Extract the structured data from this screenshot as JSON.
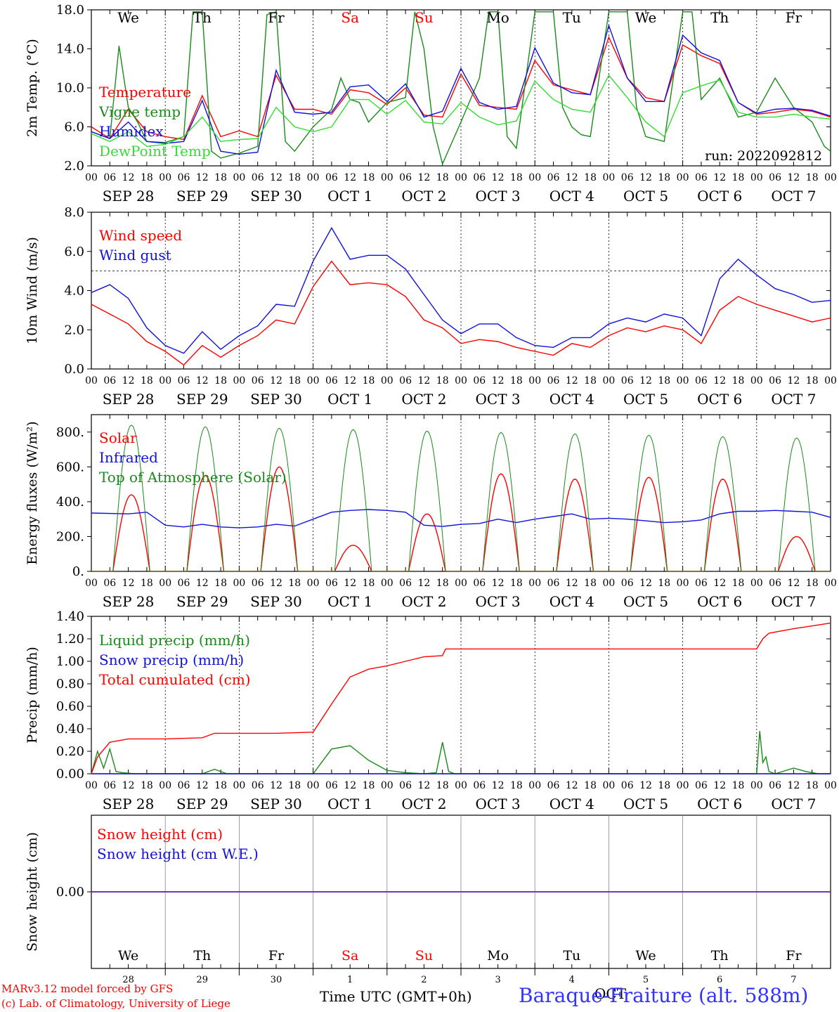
{
  "colors": {
    "temperature": "#ff0000",
    "vigne": "#1a8a1a",
    "humidex": "#1111dd",
    "dewpoint": "#33dd33",
    "wind": "#ff0000",
    "gust": "#1111dd",
    "solar": "#ff0000",
    "infrared": "#1111dd",
    "toa": "#1a8a1a",
    "liquid": "#1a8a1a",
    "snow": "#1111dd",
    "cumul": "#ff0000",
    "snowh": "#ff0000",
    "snowwe": "#1111dd",
    "snowline": "#7733aa",
    "weekend": "#ff0000",
    "weekday": "#000000"
  },
  "days": [
    "We",
    "Th",
    "Fr",
    "Sa",
    "Su",
    "Mo",
    "Tu",
    "We",
    "Th",
    "Fr"
  ],
  "weekend_days": [
    3,
    4
  ],
  "dates": [
    "SEP 28",
    "SEP 29",
    "SEP 30",
    "OCT  1",
    "OCT  2",
    "OCT  3",
    "OCT  4",
    "OCT  5",
    "OCT  6",
    "OCT  7"
  ],
  "day_numbers": [
    "28",
    "29",
    "30",
    "1",
    "2",
    "3",
    "4",
    "5",
    "6",
    "7"
  ],
  "hour_ticks": [
    "00",
    "06",
    "12",
    "18"
  ],
  "run_label": "run: 2022092812",
  "footer": {
    "credit_line1": "MARv3.12 model forced by GFS",
    "credit_line2": "(c) Lab. of Climatology, University of Liege",
    "axis_title": "Time UTC (GMT+0h)",
    "station": "Baraque-Fraiture (alt. 588m)",
    "month_stamp": "OCT"
  },
  "chart_data": [
    {
      "type": "line",
      "ylabel": "2m Temp. (°C)",
      "ylim": [
        2.0,
        18.0
      ],
      "yticks": [
        "2.0",
        "6.0",
        "10.0",
        "14.0",
        "18.0"
      ],
      "x_unit": "hours since SEP 28 00 UTC",
      "series": [
        {
          "name": "Temperature",
          "color_key": "temperature",
          "x": [
            0,
            6,
            12,
            18,
            24,
            30,
            36,
            42,
            48,
            54,
            60,
            66,
            72,
            78,
            84,
            90,
            96,
            102,
            108,
            114,
            120,
            126,
            132,
            138,
            144,
            150,
            156,
            162,
            168,
            174,
            180,
            186,
            192,
            198,
            204,
            210,
            216,
            222,
            228,
            234,
            240
          ],
          "y": [
            6.0,
            4.8,
            7.8,
            5.5,
            5.0,
            4.7,
            9.2,
            5.0,
            5.6,
            5.0,
            11.3,
            7.8,
            7.8,
            7.3,
            9.8,
            9.5,
            8.3,
            10.0,
            7.2,
            7.0,
            11.4,
            8.2,
            8.0,
            7.8,
            12.8,
            10.3,
            9.8,
            9.3,
            15.2,
            11.0,
            9.0,
            8.6,
            14.4,
            13.3,
            12.5,
            8.5,
            7.3,
            7.5,
            7.8,
            7.6,
            7.0
          ]
        },
        {
          "name": "Vigne temp",
          "color_key": "vigne",
          "x": [
            0,
            6,
            9,
            12,
            15,
            18,
            24,
            30,
            33,
            36,
            39,
            42,
            48,
            54,
            57,
            60,
            63,
            66,
            72,
            78,
            81,
            84,
            87,
            90,
            96,
            102,
            105,
            108,
            111,
            114,
            120,
            126,
            129,
            132,
            135,
            138,
            144,
            150,
            153,
            156,
            159,
            162,
            168,
            174,
            177,
            180,
            186,
            192,
            195,
            198,
            204,
            210,
            216,
            222,
            228,
            234,
            238,
            240
          ],
          "y": [
            5.5,
            4.8,
            14.3,
            8.0,
            6.5,
            4.5,
            4.4,
            5.0,
            17.8,
            17.8,
            3.5,
            2.8,
            3.3,
            4.0,
            17.5,
            17.8,
            4.5,
            3.5,
            6.0,
            7.8,
            11.0,
            8.8,
            8.5,
            6.5,
            8.5,
            9.0,
            17.8,
            14.0,
            6.0,
            2.2,
            6.5,
            11.0,
            17.8,
            17.8,
            5.0,
            3.8,
            17.8,
            17.8,
            8.0,
            6.0,
            5.2,
            5.0,
            17.8,
            17.8,
            8.0,
            5.0,
            4.5,
            17.8,
            17.8,
            8.8,
            11.0,
            7.0,
            7.5,
            11.0,
            8.0,
            6.5,
            4.0,
            3.5
          ]
        },
        {
          "name": "Humidex",
          "color_key": "humidex",
          "x": [
            0,
            6,
            12,
            18,
            24,
            30,
            36,
            42,
            48,
            54,
            60,
            66,
            72,
            78,
            84,
            90,
            96,
            102,
            108,
            114,
            120,
            126,
            132,
            138,
            144,
            150,
            156,
            162,
            168,
            174,
            180,
            186,
            192,
            198,
            204,
            210,
            216,
            222,
            228,
            234,
            240
          ],
          "y": [
            5.5,
            4.8,
            6.5,
            4.5,
            4.3,
            4.5,
            8.7,
            3.5,
            3.2,
            3.4,
            11.8,
            7.5,
            7.3,
            7.5,
            10.1,
            10.3,
            8.6,
            10.4,
            7.0,
            7.6,
            12.0,
            8.5,
            7.8,
            8.1,
            14.1,
            10.5,
            9.5,
            9.3,
            16.4,
            11.0,
            8.6,
            8.6,
            15.4,
            13.6,
            12.8,
            8.5,
            7.4,
            7.8,
            7.9,
            7.7,
            7.1
          ]
        },
        {
          "name": "DewPoint Temp",
          "color_key": "dewpoint",
          "x": [
            0,
            6,
            12,
            18,
            24,
            30,
            36,
            42,
            48,
            54,
            60,
            66,
            72,
            78,
            84,
            90,
            96,
            102,
            108,
            114,
            120,
            126,
            132,
            138,
            144,
            150,
            156,
            162,
            168,
            174,
            180,
            186,
            192,
            198,
            204,
            210,
            216,
            222,
            228,
            234,
            240
          ],
          "y": [
            5.3,
            4.5,
            5.5,
            4.0,
            4.2,
            5.0,
            7.0,
            4.5,
            4.7,
            4.8,
            8.0,
            6.0,
            5.5,
            6.0,
            8.8,
            8.8,
            7.3,
            8.7,
            6.5,
            6.3,
            8.5,
            7.0,
            6.2,
            6.6,
            10.7,
            8.8,
            7.8,
            7.5,
            11.3,
            9.0,
            6.5,
            5.0,
            9.5,
            10.2,
            10.8,
            7.5,
            7.0,
            7.0,
            7.3,
            7.0,
            6.8
          ]
        }
      ]
    },
    {
      "type": "line",
      "ylabel": "10m Wind (m/s)",
      "ylim": [
        0.0,
        8.0
      ],
      "yticks": [
        "0.0",
        "2.0",
        "4.0",
        "6.0",
        "8.0"
      ],
      "reference_line": 5.0,
      "x_unit": "hours since SEP 28 00 UTC",
      "series": [
        {
          "name": "Wind speed",
          "color_key": "wind",
          "x": [
            0,
            6,
            12,
            18,
            24,
            30,
            36,
            42,
            48,
            54,
            60,
            66,
            72,
            78,
            84,
            90,
            96,
            102,
            108,
            114,
            120,
            126,
            132,
            138,
            144,
            150,
            156,
            162,
            168,
            174,
            180,
            186,
            192,
            198,
            204,
            210,
            216,
            222,
            228,
            234,
            240
          ],
          "y": [
            3.3,
            2.8,
            2.3,
            1.4,
            0.9,
            0.2,
            1.2,
            0.6,
            1.2,
            1.7,
            2.5,
            2.3,
            4.2,
            5.5,
            4.3,
            4.4,
            4.3,
            3.7,
            2.5,
            2.1,
            1.3,
            1.5,
            1.4,
            1.1,
            0.9,
            0.7,
            1.3,
            1.1,
            1.7,
            2.1,
            1.9,
            2.2,
            2.0,
            1.3,
            3.0,
            3.7,
            3.3,
            3.0,
            2.7,
            2.4,
            2.6
          ]
        },
        {
          "name": "Wind gust",
          "color_key": "gust",
          "x": [
            0,
            6,
            12,
            18,
            24,
            30,
            36,
            42,
            48,
            54,
            60,
            66,
            72,
            78,
            84,
            90,
            96,
            102,
            108,
            114,
            120,
            126,
            132,
            138,
            144,
            150,
            156,
            162,
            168,
            174,
            180,
            186,
            192,
            198,
            204,
            210,
            216,
            222,
            228,
            234,
            240
          ],
          "y": [
            3.9,
            4.3,
            3.6,
            2.1,
            1.2,
            0.8,
            1.9,
            1.0,
            1.7,
            2.2,
            3.3,
            3.2,
            5.5,
            7.2,
            5.6,
            5.8,
            5.8,
            5.1,
            3.8,
            2.5,
            1.8,
            2.3,
            2.3,
            1.6,
            1.2,
            1.1,
            1.6,
            1.6,
            2.3,
            2.6,
            2.4,
            2.8,
            2.6,
            1.7,
            4.6,
            5.6,
            4.8,
            4.1,
            3.8,
            3.4,
            3.5
          ]
        }
      ]
    },
    {
      "type": "line",
      "ylabel": "Energy fluxes (W/m²)",
      "ylim": [
        0,
        900
      ],
      "yticks": [
        "0.",
        "200.",
        "400.",
        "600.",
        "800."
      ],
      "x_unit": "hours since SEP 28 00 UTC",
      "solar_peak_hour": 13,
      "solar_half_width_hours": 6,
      "series": [
        {
          "name": "Solar",
          "color_key": "solar",
          "daily_peaks": [
            440,
            550,
            600,
            150,
            330,
            560,
            530,
            540,
            530,
            200
          ]
        },
        {
          "name": "Infrared",
          "color_key": "infrared",
          "x": [
            0,
            12,
            18,
            24,
            30,
            36,
            42,
            48,
            54,
            60,
            66,
            72,
            78,
            84,
            90,
            96,
            102,
            108,
            114,
            120,
            126,
            132,
            138,
            144,
            150,
            156,
            162,
            168,
            174,
            180,
            186,
            192,
            198,
            204,
            210,
            216,
            222,
            228,
            234,
            240
          ],
          "y": [
            335,
            330,
            340,
            265,
            255,
            270,
            255,
            250,
            255,
            270,
            260,
            300,
            340,
            350,
            355,
            350,
            340,
            265,
            258,
            270,
            275,
            300,
            280,
            300,
            315,
            330,
            300,
            305,
            300,
            290,
            280,
            285,
            295,
            330,
            345,
            345,
            350,
            345,
            340,
            310
          ]
        },
        {
          "name": "Top of Atmosphere (Solar)",
          "color_key": "toa",
          "daily_peaks": [
            840,
            830,
            822,
            814,
            806,
            798,
            790,
            782,
            774,
            766
          ]
        }
      ]
    },
    {
      "type": "line",
      "ylabel": "Precip (mm/h)",
      "ylim": [
        0.0,
        1.4
      ],
      "yticks": [
        "0.00",
        "0.20",
        "0.40",
        "0.60",
        "0.80",
        "1.00",
        "1.20",
        "1.40"
      ],
      "x_unit": "hours since SEP 28 00 UTC",
      "series": [
        {
          "name": "Liquid precip (mm/h)",
          "color_key": "liquid",
          "x": [
            0,
            2,
            4,
            6,
            8,
            10,
            14,
            18,
            24,
            36,
            40,
            44,
            48,
            72,
            78,
            84,
            90,
            96,
            102,
            108,
            112,
            114,
            116,
            118,
            120,
            168,
            216,
            217,
            218,
            219,
            220,
            222,
            228,
            232,
            236,
            240
          ],
          "y": [
            0.0,
            0.2,
            0.05,
            0.22,
            0.02,
            0.01,
            0.0,
            0.0,
            0.0,
            0.0,
            0.04,
            0.0,
            0.0,
            0.0,
            0.22,
            0.25,
            0.12,
            0.03,
            0.01,
            0.0,
            0.01,
            0.28,
            0.02,
            0.0,
            0.0,
            0.0,
            0.0,
            0.38,
            0.1,
            0.15,
            0.02,
            0.0,
            0.05,
            0.02,
            0.0,
            0.0
          ]
        },
        {
          "name": "Snow precip (mm/h)",
          "color_key": "snow",
          "x": [
            0,
            240
          ],
          "y": [
            0.0,
            0.0
          ]
        },
        {
          "name": "Total cumulated (cm)",
          "color_key": "cumul",
          "x": [
            0,
            2,
            6,
            12,
            24,
            36,
            40,
            48,
            60,
            72,
            78,
            84,
            90,
            96,
            102,
            108,
            114,
            115,
            120,
            168,
            210,
            216,
            218,
            220,
            228,
            240
          ],
          "y": [
            0.0,
            0.15,
            0.28,
            0.31,
            0.31,
            0.32,
            0.36,
            0.36,
            0.36,
            0.37,
            0.62,
            0.86,
            0.93,
            0.96,
            1.0,
            1.04,
            1.05,
            1.11,
            1.11,
            1.11,
            1.11,
            1.11,
            1.2,
            1.25,
            1.29,
            1.34
          ]
        }
      ]
    },
    {
      "type": "line",
      "ylabel": "Snow height (cm)",
      "ylim": [
        -1.0,
        1.0
      ],
      "yticks": [
        "0.00"
      ],
      "x_unit": "hours since SEP 28 00 UTC",
      "series": [
        {
          "name": "Snow height (cm)",
          "color_key": "snowh",
          "x": [
            0,
            240
          ],
          "y": [
            0.0,
            0.0
          ]
        },
        {
          "name": "Snow height (cm W.E.)",
          "color_key": "snowwe",
          "x": [
            0,
            240
          ],
          "y": [
            0.0,
            0.0
          ]
        }
      ]
    }
  ]
}
